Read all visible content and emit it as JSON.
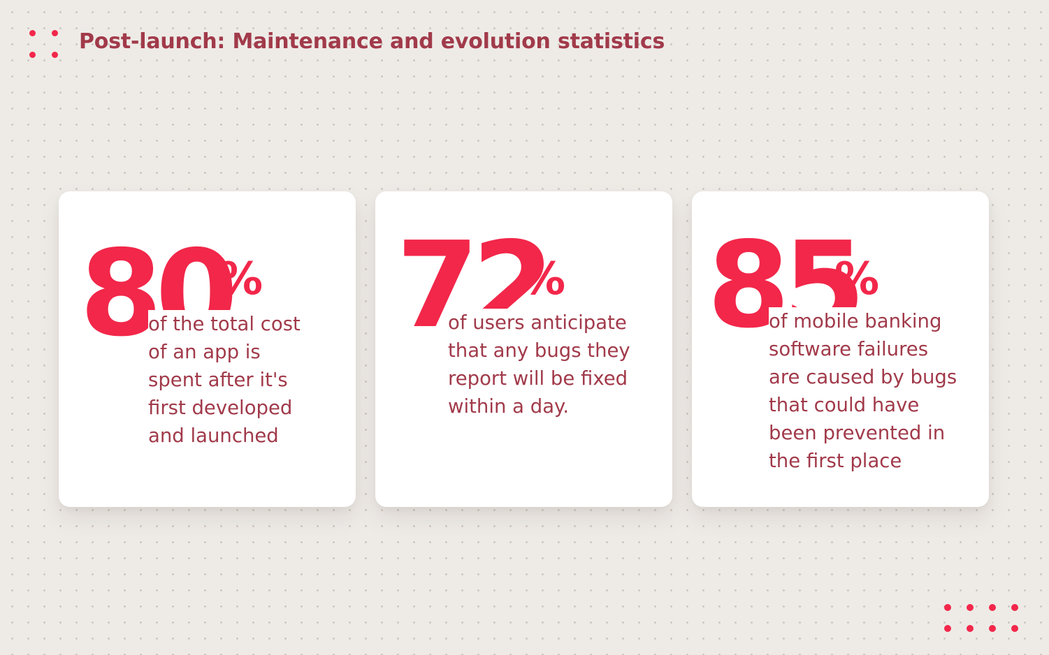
{
  "header": {
    "title": "Post-launch: Maintenance and evolution statistics"
  },
  "stats": [
    {
      "number": "80",
      "unit": "%",
      "lines": [
        "of the total cost",
        "of an app is",
        "spent after it's",
        "first developed",
        "and launched"
      ]
    },
    {
      "number": "72",
      "unit": "%",
      "lines": [
        "of users anticipate",
        "that any bugs they",
        "report will be fixed",
        "within a day."
      ]
    },
    {
      "number": "85",
      "unit": "%",
      "lines": [
        "of mobile banking",
        "software failures",
        "are caused by bugs",
        "that could have",
        "been prevented in",
        "the first place"
      ]
    }
  ],
  "colors": {
    "accent": "#f2274a",
    "text": "#a13a4a",
    "background": "#eeebe7",
    "card": "#ffffff"
  },
  "icons": {
    "logo": "dot-grid-logo-icon",
    "decoration": "dot-grid-decoration-icon"
  }
}
